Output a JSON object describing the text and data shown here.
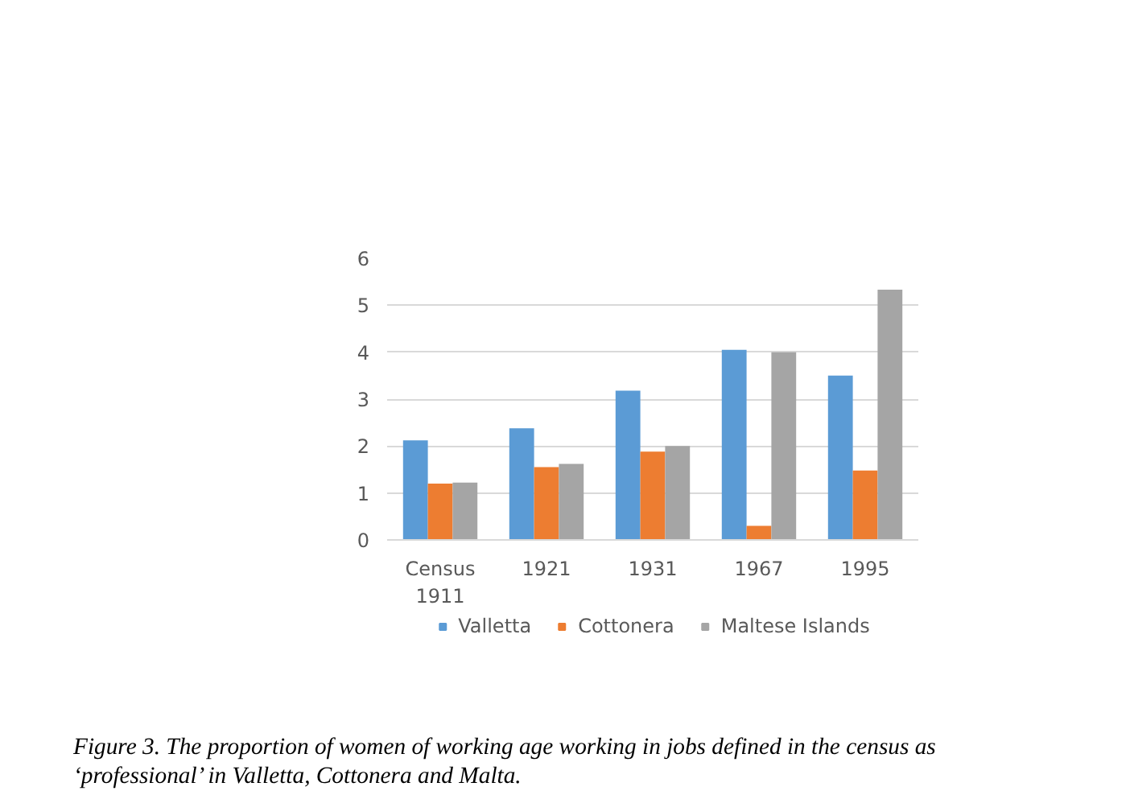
{
  "chart_data": {
    "type": "bar",
    "categories": [
      "Census 1911",
      "1921",
      "1931",
      "1967",
      "1995"
    ],
    "series": [
      {
        "name": "Valletta",
        "color": "#5b9bd5",
        "values": [
          2.12,
          2.38,
          3.18,
          4.05,
          3.5
        ]
      },
      {
        "name": "Cottonera",
        "color": "#ed7d31",
        "values": [
          1.2,
          1.55,
          1.88,
          0.3,
          1.48
        ]
      },
      {
        "name": "Maltese Islands",
        "color": "#a5a5a5",
        "values": [
          1.22,
          1.62,
          2.0,
          4.0,
          5.33
        ]
      }
    ],
    "ylim": [
      0,
      6
    ],
    "yticks": [
      0,
      1,
      2,
      3,
      4,
      5,
      6
    ],
    "grid": "y",
    "legend": "bottom",
    "annotations": [
      "Figure 3. The proportion of women of working age working in jobs defined in the census as ‘professional’ in Valletta, Cottonera and Malta."
    ]
  }
}
